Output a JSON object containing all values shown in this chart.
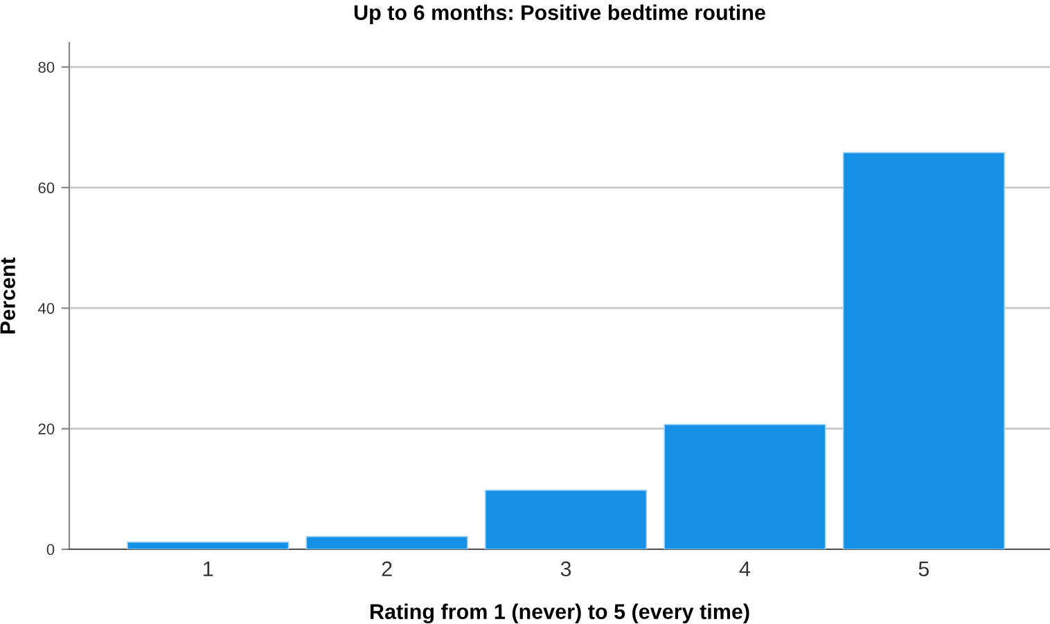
{
  "chart_data": {
    "type": "bar",
    "title": "Up to 6 months: Positive bedtime routine",
    "xlabel": "Rating from 1 (never) to 5 (every time)",
    "ylabel": "Percent",
    "categories": [
      "1",
      "2",
      "3",
      "4",
      "5"
    ],
    "values": [
      1.2,
      2.1,
      9.8,
      20.7,
      65.8
    ],
    "color": "#1491e6",
    "ylim": [
      0,
      84
    ],
    "yticks": [
      0,
      20,
      40,
      60,
      80
    ],
    "grid": "y"
  }
}
